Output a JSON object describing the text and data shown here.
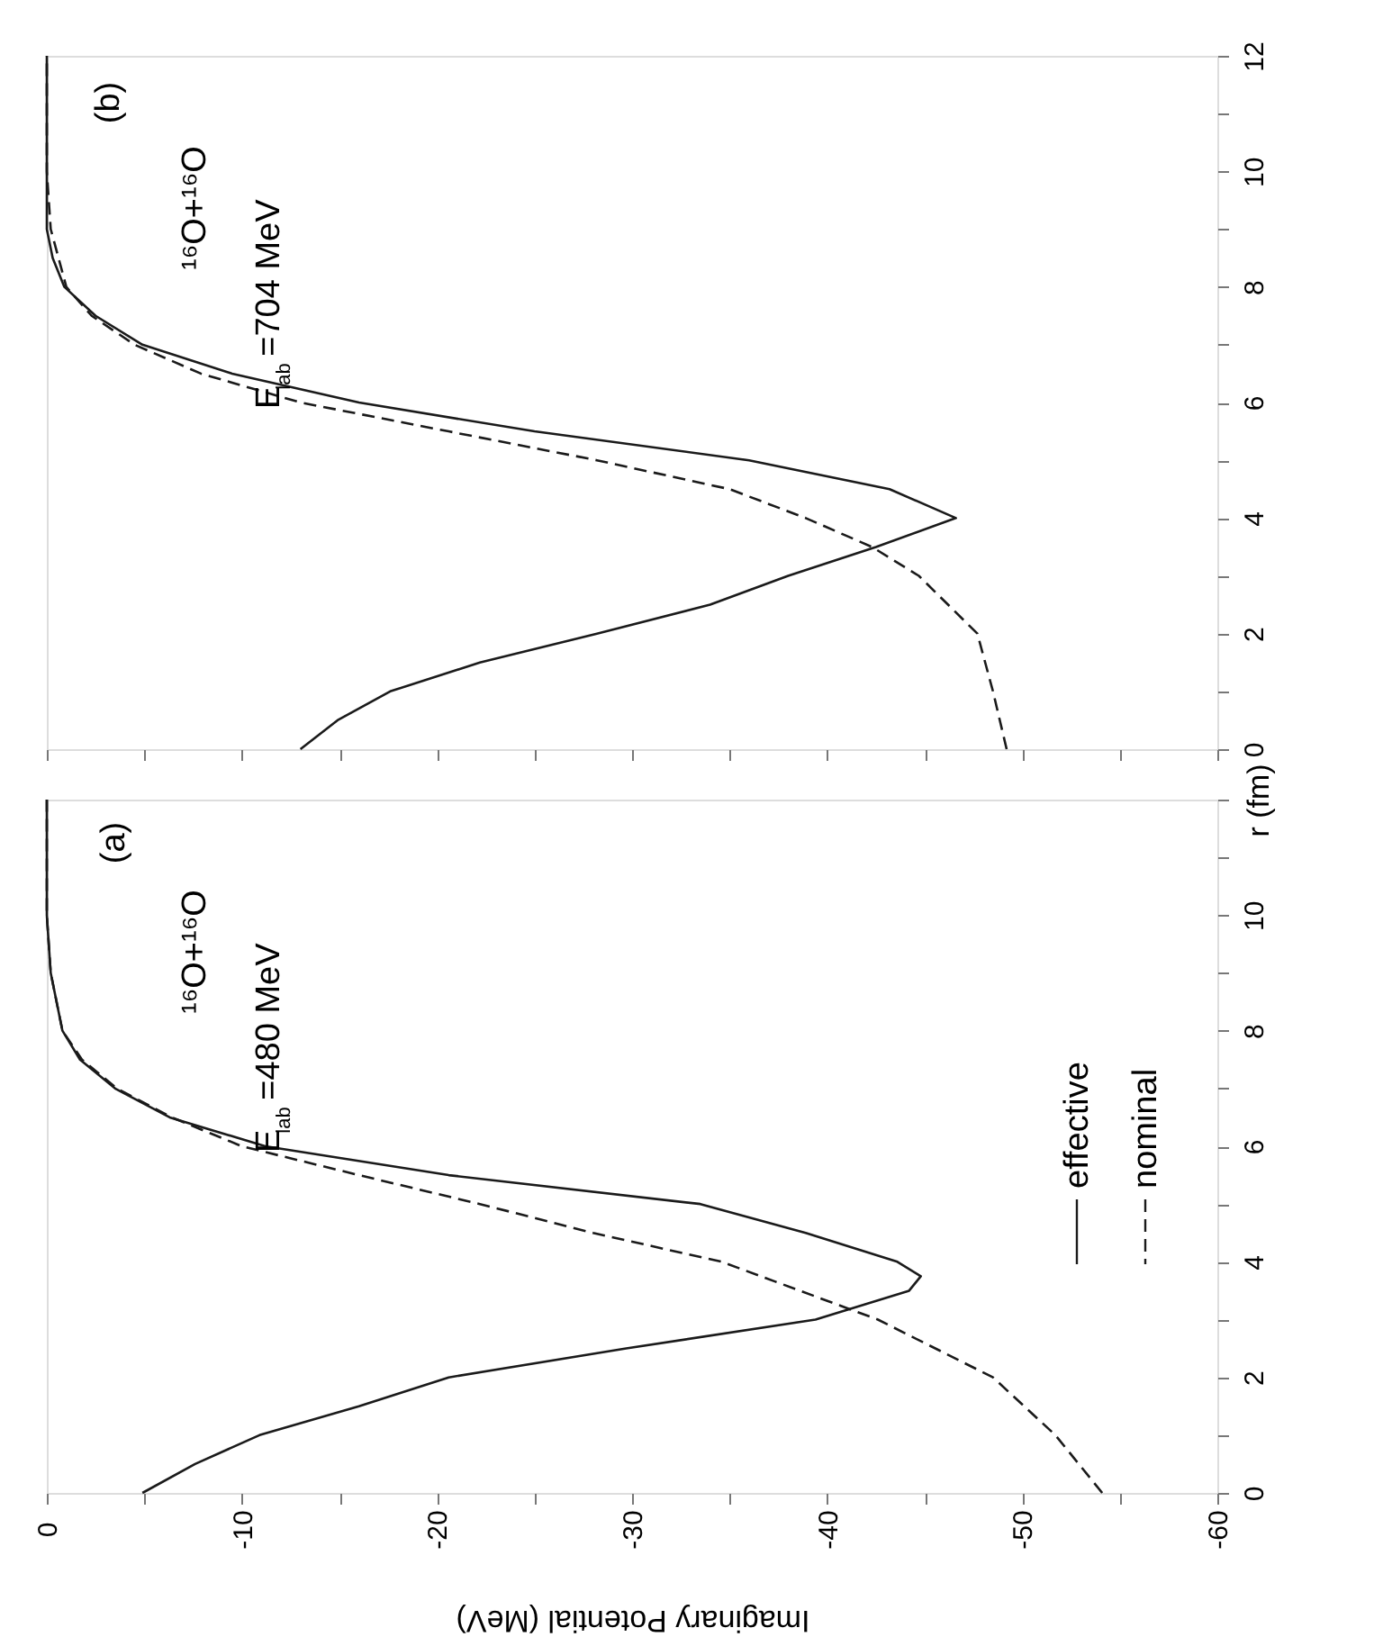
{
  "chart_data": [
    {
      "type": "line",
      "xlim": [
        0,
        -60
      ],
      "ylim": [
        0,
        12
      ],
      "yticks": [
        0,
        {
          "value": 1,
          "label": null
        },
        2,
        {
          "value": 3,
          "label": null
        },
        4,
        {
          "value": 5,
          "label": null
        },
        6,
        {
          "value": 7,
          "label": null
        },
        8,
        {
          "value": 9,
          "label": null
        },
        10,
        {
          "value": 11,
          "label": null
        },
        12
      ],
      "xticks": [
        {
          "value": 0,
          "label": null
        },
        {
          "value": -5,
          "label": null
        },
        {
          "value": -10,
          "label": null
        },
        {
          "value": -15,
          "label": null
        },
        {
          "value": -20,
          "label": null
        },
        {
          "value": -25,
          "label": null
        },
        {
          "value": -30,
          "label": null
        },
        {
          "value": -35,
          "label": null
        },
        {
          "value": -40,
          "label": null
        },
        {
          "value": -45,
          "label": null
        },
        {
          "value": -50,
          "label": null
        },
        {
          "value": -55,
          "label": null
        },
        {
          "value": -60,
          "label": null
        }
      ],
      "tick_labels": "y",
      "grid": false,
      "legend": false,
      "marker": "none",
      "annotations": [
        "(b)",
        "¹⁶O+¹⁶O",
        "E$_{lab}$=704 MeV"
      ],
      "series": [
        {
          "color": "#1a1a1a",
          "line_style": "solid",
          "values": [
            0,
            0.5,
            1,
            1.5,
            2,
            2.5,
            3,
            3.5,
            4,
            4.5,
            5,
            5.5,
            6,
            6.5,
            7,
            7.5,
            8,
            8.5,
            9,
            10,
            11,
            12
          ],
          "x": [
            -13,
            -14.9,
            -17.6,
            -22.2,
            -28.2,
            -34,
            -38,
            -42.5,
            -46.6,
            -43.2,
            -36,
            -25,
            -16,
            -9.5,
            -4.9,
            -2.5,
            -0.9,
            -0.3,
            0,
            0,
            0,
            0
          ]
        },
        {
          "color": "#1a1a1a",
          "line_style": "dashed",
          "values": [
            0,
            1,
            2,
            3,
            3.5,
            4,
            4.5,
            5,
            5.5,
            6,
            6.5,
            7,
            7.5,
            8,
            9,
            10,
            11,
            12
          ],
          "x": [
            -49.2,
            -48.5,
            -47.7,
            -44.7,
            -42.3,
            -38.9,
            -35,
            -28.2,
            -20.6,
            -13,
            -7.9,
            -4.5,
            -2.3,
            -1,
            -0.2,
            0,
            0,
            0
          ]
        }
      ]
    },
    {
      "type": "line",
      "xlim": [
        0,
        -60
      ],
      "ylim": [
        0,
        12
      ],
      "yticks": [
        0,
        {
          "value": 1,
          "label": null
        },
        2,
        {
          "value": 3,
          "label": null
        },
        4,
        {
          "value": 5,
          "label": null
        },
        6,
        {
          "value": 7,
          "label": null
        },
        8,
        {
          "value": 9,
          "label": null
        },
        10,
        {
          "value": 11,
          "label": null
        },
        {
          "value": 12,
          "label": null
        }
      ],
      "xticks": [
        0,
        {
          "value": -5,
          "label": null
        },
        -10,
        {
          "value": -15,
          "label": null
        },
        -20,
        {
          "value": -25,
          "label": null
        },
        -30,
        {
          "value": -35,
          "label": null
        },
        -40,
        {
          "value": -45,
          "label": null
        },
        -50,
        {
          "value": -55,
          "label": null
        },
        -60
      ],
      "ylabel": "r (fm)",
      "xlabel": "Imaginary Potential (MeV)",
      "grid": false,
      "legend": "right",
      "marker": "none",
      "annotations": [
        "(a)",
        "¹⁶O+¹⁶O",
        "E$_{lab}$=480 MeV"
      ],
      "series": [
        {
          "name": "effective",
          "color": "#1a1a1a",
          "line_style": "solid",
          "values": [
            0,
            0.5,
            1,
            1.5,
            2,
            2.5,
            3,
            3.5,
            3.75,
            4,
            4.5,
            5,
            5.5,
            6,
            6.5,
            7,
            7.5,
            8,
            9,
            10,
            11,
            12
          ],
          "x": [
            -4.9,
            -7.6,
            -10.9,
            -16,
            -20.6,
            -29.7,
            -39.4,
            -44.2,
            -44.8,
            -43.6,
            -38.9,
            -33.5,
            -20.6,
            -11.2,
            -6.3,
            -3.5,
            -1.7,
            -0.8,
            -0.2,
            0,
            0,
            0
          ]
        },
        {
          "name": "nominal",
          "color": "#1a1a1a",
          "line_style": "dashed",
          "values": [
            0,
            1,
            2,
            3,
            4,
            4.5,
            5,
            5.5,
            6,
            6.5,
            7,
            7.5,
            8,
            9,
            10,
            11,
            12
          ],
          "x": [
            -54.1,
            -51.7,
            -48.5,
            -42.6,
            -34.6,
            -28,
            -22.2,
            -16,
            -10,
            -6.4,
            -3.6,
            -1.8,
            -0.8,
            -0.2,
            0,
            0,
            0
          ]
        }
      ]
    }
  ]
}
